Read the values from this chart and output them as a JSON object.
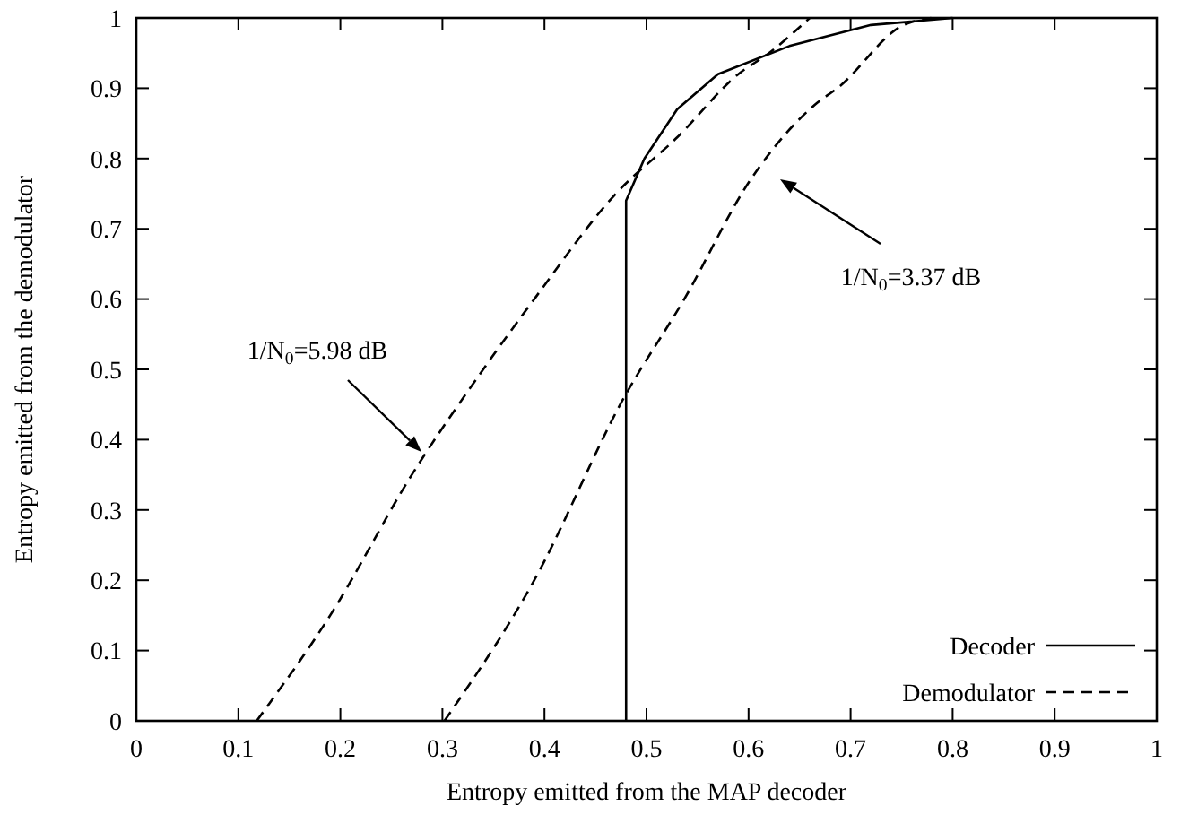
{
  "chart_data": {
    "type": "line",
    "xlabel": "Entropy emitted from the MAP decoder",
    "ylabel": "Entropy emitted from the demodulator",
    "xlim": [
      0,
      1
    ],
    "ylim": [
      0,
      1
    ],
    "xticks": [
      0,
      0.1,
      0.2,
      0.3,
      0.4,
      0.5,
      0.6,
      0.7,
      0.8,
      0.9,
      1
    ],
    "yticks": [
      0,
      0.1,
      0.2,
      0.3,
      0.4,
      0.5,
      0.6,
      0.7,
      0.8,
      0.9,
      1
    ],
    "grid": false,
    "legend": "bottom right",
    "series": [
      {
        "name": "Decoder",
        "color": "#000000",
        "line_style": "solid",
        "x": [
          0.48,
          0.48,
          0.498,
          0.53,
          0.57,
          0.64,
          0.72,
          0.8
        ],
        "values": [
          0,
          0.74,
          0.8,
          0.87,
          0.92,
          0.96,
          0.99,
          1.0
        ]
      },
      {
        "name": "Demodulator",
        "color": "#000000",
        "line_style": "dashed",
        "x": [
          0.118,
          0.19,
          0.27,
          0.34,
          0.39,
          0.47,
          0.53,
          0.59,
          0.62,
          0.66
        ],
        "values": [
          0,
          0.15,
          0.35,
          0.5,
          0.6,
          0.75,
          0.83,
          0.92,
          0.95,
          1.0
        ]
      },
      {
        "color": "#000000",
        "line_style": "dashed",
        "x": [
          0.302,
          0.39,
          0.478,
          0.537,
          0.602,
          0.668,
          0.687,
          0.752,
          0.779
        ],
        "values": [
          0,
          0.2,
          0.46,
          0.6,
          0.77,
          0.88,
          0.9,
          0.99,
          1.0
        ]
      }
    ],
    "annotations": [
      "1/N$_{0}$=5.98 dB",
      "1/N$_{0}$=3.37 dB"
    ]
  }
}
